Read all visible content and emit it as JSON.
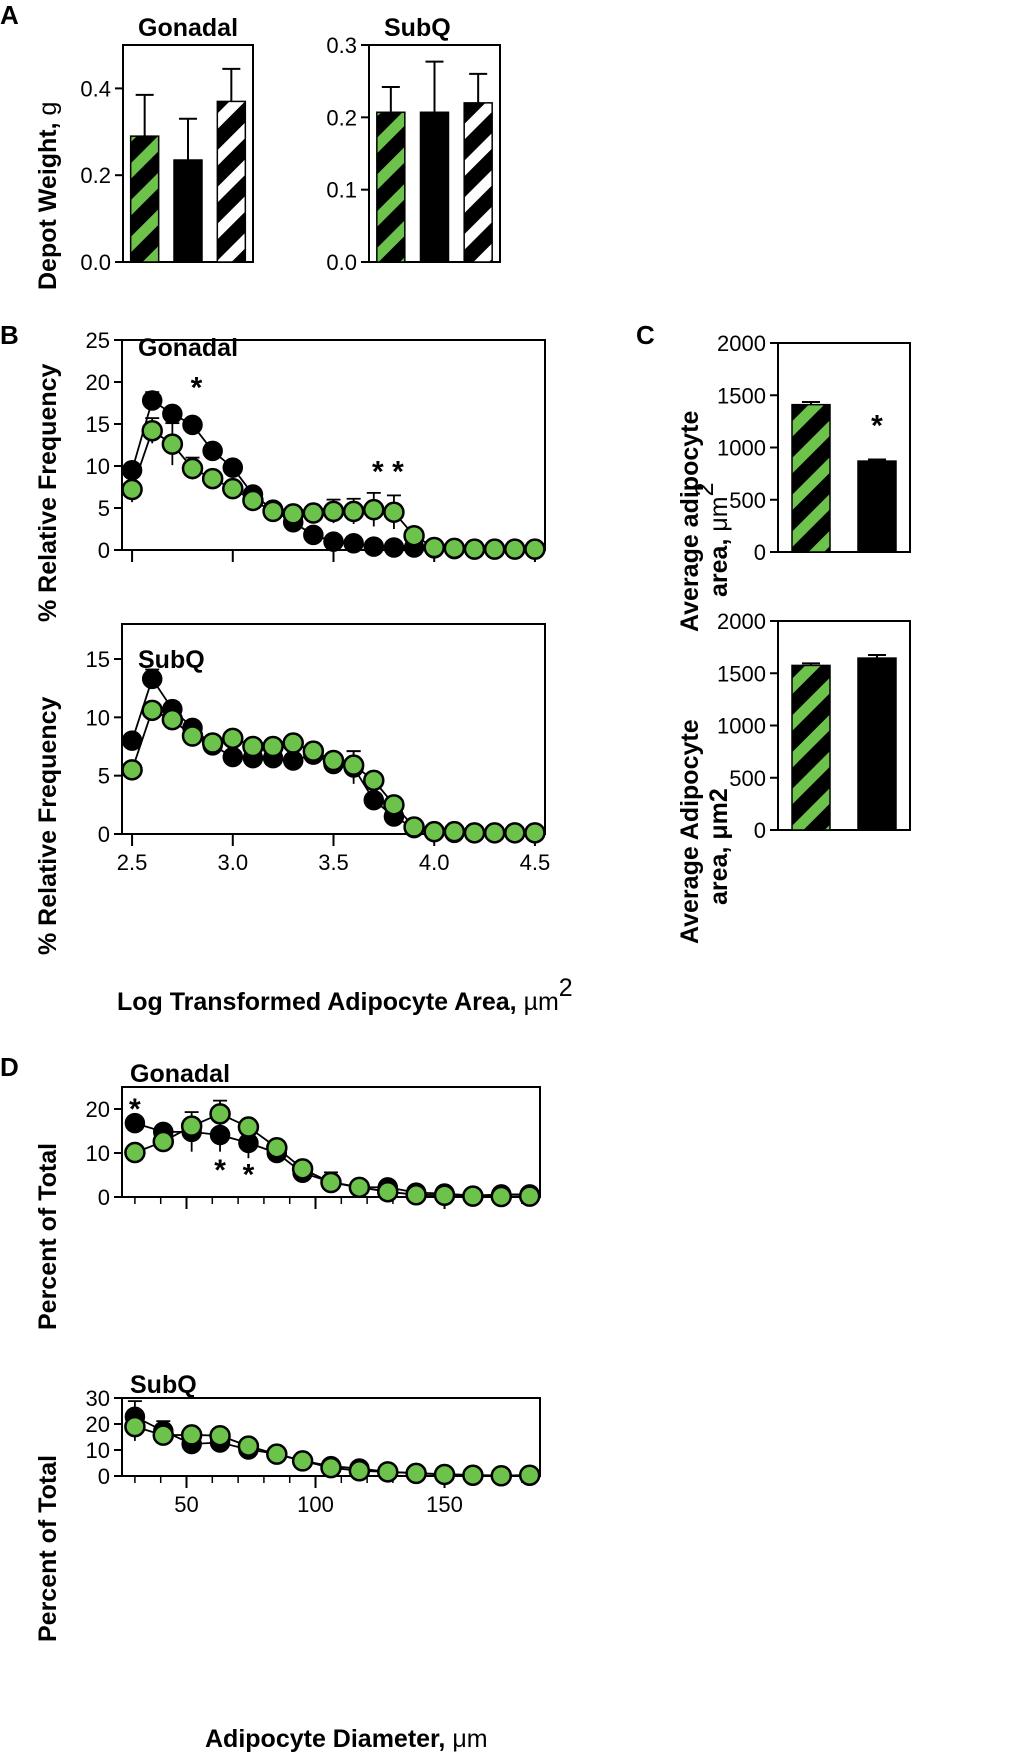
{
  "colors": {
    "green": "#6cc24a",
    "black": "#000000",
    "white": "#ffffff"
  },
  "panel_letters": {
    "a": "A",
    "b": "B",
    "c": "C",
    "d": "D"
  },
  "chart_data": [
    {
      "id": "A-gonadal",
      "type": "bar",
      "title": "Gonadal",
      "ylabel": "Depot Weight,",
      "ylabel_unit": "g",
      "ylim": [
        0,
        0.5
      ],
      "yticks": [
        0.0,
        0.2,
        0.4
      ],
      "ytick_labels": [
        "0.0",
        "0.2",
        "0.4"
      ],
      "bars": [
        {
          "value": 0.29,
          "err": 0.095,
          "pattern": "green-stripe"
        },
        {
          "value": 0.235,
          "err": 0.095,
          "pattern": "solid-black"
        },
        {
          "value": 0.37,
          "err": 0.075,
          "pattern": "white-stripe"
        }
      ]
    },
    {
      "id": "A-subq",
      "type": "bar",
      "title": "SubQ",
      "ylim": [
        0,
        0.3
      ],
      "yticks": [
        0.0,
        0.1,
        0.2,
        0.3
      ],
      "ytick_labels": [
        "0.0",
        "0.1",
        "0.2",
        "0.3"
      ],
      "bars": [
        {
          "value": 0.207,
          "err": 0.035,
          "pattern": "green-stripe"
        },
        {
          "value": 0.207,
          "err": 0.07,
          "pattern": "solid-black"
        },
        {
          "value": 0.22,
          "err": 0.04,
          "pattern": "white-stripe"
        }
      ]
    },
    {
      "id": "B-gonadal",
      "type": "line",
      "title": "Gonadal",
      "ylabel": "% Relative Frequency",
      "ylim": [
        0,
        25
      ],
      "xlim": [
        2.45,
        4.55
      ],
      "yticks": [
        0,
        5,
        10,
        15,
        20,
        25
      ],
      "ytick_labels": [
        "0",
        "5",
        "10",
        "15",
        "20",
        "25"
      ],
      "xticks": [
        2.5,
        3.0,
        3.5,
        4.0,
        4.5
      ],
      "x": [
        2.5,
        2.6,
        2.7,
        2.8,
        2.9,
        3.0,
        3.1,
        3.2,
        3.3,
        3.4,
        3.5,
        3.6,
        3.7,
        3.8,
        3.9,
        4.0,
        4.1,
        4.2,
        4.3,
        4.4,
        4.5
      ],
      "series": [
        {
          "name": "black",
          "values": [
            9.5,
            17.8,
            16.2,
            14.9,
            11.8,
            9.8,
            6.6,
            4.8,
            3.3,
            1.8,
            1.0,
            0.8,
            0.4,
            0.3,
            0.3,
            0.2,
            0.1,
            0.1,
            0.1,
            0.1,
            0.1
          ],
          "err": [
            0.5,
            1.0,
            0.6,
            0.5,
            0.5,
            0.4,
            0.3,
            0.3,
            0.3,
            0.2,
            0.2,
            0.1,
            0.1,
            0.1,
            0.1,
            0,
            0,
            0,
            0,
            0,
            0
          ]
        },
        {
          "name": "green",
          "values": [
            7.2,
            14.2,
            12.6,
            9.7,
            8.5,
            7.3,
            5.9,
            4.6,
            4.3,
            4.4,
            4.6,
            4.6,
            4.8,
            4.5,
            1.7,
            0.3,
            0.2,
            0.1,
            0.1,
            0.1,
            0.1
          ],
          "err": [
            1.5,
            1.5,
            2.5,
            1.3,
            0.7,
            0.6,
            0.5,
            0.4,
            0.5,
            0.8,
            1.4,
            1.5,
            2.0,
            2.0,
            0.3,
            0.1,
            0,
            0,
            0,
            0,
            0
          ]
        }
      ],
      "stars": [
        {
          "x": 2.82,
          "y": 19.6,
          "text": "*"
        },
        {
          "x": 3.72,
          "y": 9.6,
          "text": "*"
        },
        {
          "x": 3.82,
          "y": 9.6,
          "text": "*"
        }
      ]
    },
    {
      "id": "B-subq",
      "type": "line",
      "title": "SubQ",
      "ylabel": "% Relative Frequency",
      "ylim": [
        0,
        18
      ],
      "xlim": [
        2.45,
        4.55
      ],
      "yticks": [
        0,
        5,
        10,
        15
      ],
      "ytick_labels": [
        "0",
        "5",
        "10",
        "15"
      ],
      "xticks": [
        2.5,
        3.0,
        3.5,
        4.0,
        4.5
      ],
      "xtick_labels": [
        "2.5",
        "3.0",
        "3.5",
        "4.0",
        "4.5"
      ],
      "xlabel": "Log Transformed Adipocyte Area,",
      "xlabel_unit": "µm",
      "x": [
        2.5,
        2.6,
        2.7,
        2.8,
        2.9,
        3.0,
        3.1,
        3.2,
        3.3,
        3.4,
        3.5,
        3.6,
        3.7,
        3.8,
        3.9,
        4.0,
        4.1,
        4.2,
        4.3,
        4.4,
        4.5
      ],
      "series": [
        {
          "name": "black",
          "values": [
            8.0,
            13.3,
            10.7,
            9.1,
            7.6,
            6.6,
            6.5,
            6.5,
            6.3,
            6.8,
            6.0,
            5.7,
            2.9,
            1.5,
            0.5,
            0.2,
            0.1,
            0.1,
            0.1,
            0.1,
            0.1
          ],
          "err": [
            0.4,
            0.8,
            0.6,
            0.5,
            0.4,
            0.4,
            0.4,
            0.4,
            0.4,
            0.4,
            0.4,
            1.4,
            0.4,
            0.3,
            0.1,
            0,
            0,
            0,
            0,
            0,
            0
          ]
        },
        {
          "name": "green",
          "values": [
            5.5,
            10.6,
            9.8,
            8.4,
            7.8,
            8.2,
            7.5,
            7.5,
            7.8,
            7.1,
            6.3,
            5.9,
            4.6,
            2.5,
            0.6,
            0.2,
            0.2,
            0.1,
            0.1,
            0.1,
            0.1
          ],
          "err": [
            0.3,
            0.4,
            0.5,
            0.4,
            0.4,
            0.4,
            0.4,
            0.4,
            0.4,
            0.4,
            0.5,
            1.2,
            0.4,
            0.3,
            0.1,
            0,
            0,
            0,
            0,
            0,
            0
          ]
        }
      ]
    },
    {
      "id": "C-top",
      "type": "bar",
      "ylabel_line1": "Average adipocyte",
      "ylabel_line2": "area,",
      "ylabel_unit": "μm",
      "ylim": [
        0,
        2000
      ],
      "yticks": [
        0,
        500,
        1000,
        1500,
        2000
      ],
      "ytick_labels": [
        "0",
        "500",
        "1000",
        "1500",
        "2000"
      ],
      "bars": [
        {
          "value": 1410,
          "err": 25,
          "pattern": "green-stripe"
        },
        {
          "value": 870,
          "err": 15,
          "pattern": "solid-black"
        }
      ],
      "stars": [
        {
          "bar": 1,
          "y": 1210,
          "text": "*"
        }
      ]
    },
    {
      "id": "C-bottom",
      "type": "bar",
      "ylabel_line1": "Average Adipocyte",
      "ylabel_line2": "area, μm2",
      "ylim": [
        0,
        2000
      ],
      "yticks": [
        0,
        500,
        1000,
        1500,
        2000
      ],
      "ytick_labels": [
        "0",
        "500",
        "1000",
        "1500",
        "2000"
      ],
      "bars": [
        {
          "value": 1575,
          "err": 20,
          "pattern": "green-stripe"
        },
        {
          "value": 1645,
          "err": 30,
          "pattern": "solid-black"
        }
      ]
    },
    {
      "id": "D-gonadal",
      "type": "line",
      "title": "Gonadal",
      "ylabel": "Percent of Total",
      "ylim": [
        0,
        25
      ],
      "xlim": [
        25,
        187
      ],
      "yticks": [
        0,
        10,
        20
      ],
      "ytick_labels": [
        "0",
        "10",
        "20"
      ],
      "xticks": [
        50,
        100,
        150
      ],
      "xminor": [
        30,
        40,
        50,
        60,
        70,
        80,
        90,
        100,
        110,
        120,
        130,
        140,
        150,
        160,
        170,
        180
      ],
      "x": [
        30,
        41,
        52,
        63,
        74,
        85,
        95,
        106,
        117,
        128,
        139,
        150,
        161,
        172,
        183
      ],
      "series": [
        {
          "name": "black",
          "values": [
            16.8,
            14.8,
            14.8,
            14.1,
            12.3,
            10.0,
            5.5,
            3.4,
            2.2,
            2.2,
            1.0,
            0.8,
            0.3,
            0.6,
            0.6
          ],
          "err": [
            1.5,
            0,
            4.5,
            3.8,
            3.5,
            1.8,
            0.7,
            2.2,
            0.2,
            0.5,
            0.6,
            0.4,
            0.3,
            0.4,
            0.3
          ]
        },
        {
          "name": "green",
          "values": [
            10.1,
            12.6,
            16.1,
            18.9,
            15.9,
            11.2,
            6.4,
            3.3,
            2.2,
            1.2,
            0.5,
            0.4,
            0.2,
            0.1,
            0.2
          ],
          "err": [
            1.5,
            0.5,
            0.5,
            3.0,
            0.5,
            0.8,
            0.5,
            0.5,
            0.3,
            0.3,
            0.2,
            0.2,
            0.1,
            0.1,
            0.1
          ]
        }
      ],
      "stars": [
        {
          "x": 30,
          "y": 20.5,
          "text": "*"
        },
        {
          "x": 63,
          "y": 6.6,
          "text": "*"
        },
        {
          "x": 74,
          "y": 5.6,
          "text": "*"
        }
      ]
    },
    {
      "id": "D-subq",
      "type": "line",
      "title": "SubQ",
      "ylabel": "Percent of Total",
      "ylim": [
        0,
        30
      ],
      "xlim": [
        25,
        187
      ],
      "yticks": [
        0,
        10,
        20,
        30
      ],
      "ytick_labels": [
        "0",
        "10",
        "20",
        "30"
      ],
      "xticks": [
        50,
        100,
        150
      ],
      "xtick_labels": [
        "50",
        "100",
        "150"
      ],
      "xminor": [
        30,
        40,
        50,
        60,
        70,
        80,
        90,
        100,
        110,
        120,
        130,
        140,
        150,
        160,
        170,
        180
      ],
      "xlabel": "Adipocyte Diameter,",
      "xlabel_unit": "μm",
      "x": [
        30,
        41,
        52,
        63,
        74,
        85,
        95,
        106,
        117,
        128,
        139,
        150,
        161,
        172,
        183
      ],
      "series": [
        {
          "name": "black",
          "values": [
            22.8,
            17.3,
            12.3,
            12.9,
            10.2,
            8.5,
            5.9,
            3.8,
            2.9,
            1.6,
            1.1,
            0.7,
            0.4,
            0.2,
            0.3
          ],
          "err": [
            6.0,
            3.8,
            1.5,
            1.5,
            1.0,
            1.5,
            1.8,
            1.5,
            0.8,
            0.5,
            0.3,
            0.3,
            0.2,
            0.1,
            0.1
          ]
        },
        {
          "name": "green",
          "values": [
            19.0,
            15.7,
            15.8,
            15.5,
            11.5,
            8.4,
            5.8,
            3.2,
            2.0,
            1.6,
            1.0,
            0.6,
            0.3,
            0.1,
            0.3
          ],
          "err": [
            5.5,
            2.3,
            0.5,
            0.5,
            1.5,
            0.8,
            0.6,
            2.0,
            0.5,
            0.3,
            0.2,
            0.2,
            0.1,
            0.1,
            0.1
          ]
        }
      ]
    }
  ]
}
